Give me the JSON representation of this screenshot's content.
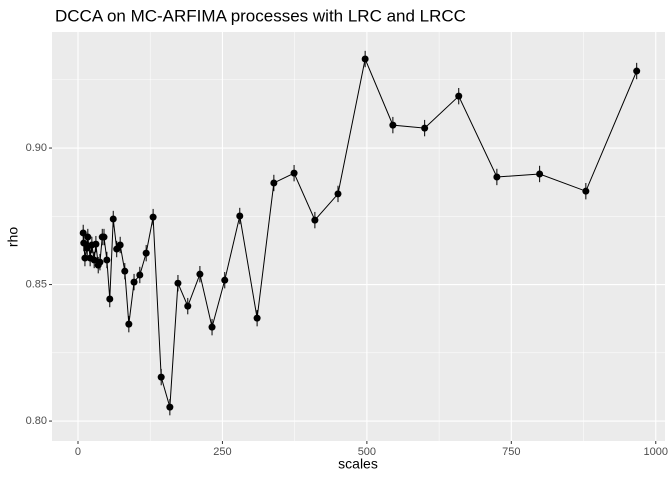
{
  "chart_data": {
    "type": "line",
    "title": "DCCA on MC-ARFIMA processes with LRC and LRCC",
    "x_label": "scales",
    "y_label": "rho",
    "x": [
      9,
      10,
      12,
      16,
      17,
      21,
      24,
      28,
      31,
      35,
      38,
      42,
      45,
      50,
      55,
      61,
      67,
      73,
      81,
      88,
      97,
      107,
      118,
      130,
      144,
      159,
      173,
      190,
      211,
      232,
      254,
      280,
      310,
      339,
      374,
      410,
      450,
      497,
      545,
      600,
      659,
      725,
      799,
      879,
      967
    ],
    "series": [
      {
        "name": "rho",
        "color": "#000000",
        "values": [
          0.8689,
          0.8652,
          0.8597,
          0.8634,
          0.8674,
          0.8597,
          0.8645,
          0.859,
          0.8648,
          0.8571,
          0.8582,
          0.8674,
          0.8674,
          0.859,
          0.8447,
          0.874,
          0.863,
          0.8645,
          0.8549,
          0.8355,
          0.8509,
          0.8535,
          0.8615,
          0.8747,
          0.8161,
          0.8051,
          0.8505,
          0.8421,
          0.8538,
          0.8344,
          0.8516,
          0.8751,
          0.8377,
          0.8872,
          0.8908,
          0.8736,
          0.8832,
          0.9326,
          0.9084,
          0.9073,
          0.919,
          0.8894,
          0.8905,
          0.8842,
          0.9282
        ],
        "errors": [
          0.003,
          0.003,
          0.003,
          0.003,
          0.003,
          0.003,
          0.003,
          0.003,
          0.003,
          0.003,
          0.003,
          0.003,
          0.003,
          0.003,
          0.003,
          0.003,
          0.003,
          0.003,
          0.003,
          0.003,
          0.003,
          0.003,
          0.003,
          0.003,
          0.003,
          0.003,
          0.003,
          0.003,
          0.003,
          0.003,
          0.003,
          0.003,
          0.003,
          0.003,
          0.003,
          0.003,
          0.003,
          0.003,
          0.003,
          0.003,
          0.003,
          0.003,
          0.003,
          0.003,
          0.003
        ]
      }
    ],
    "xlim": [
      -45,
      1016
    ],
    "xticks": [
      0,
      250,
      500,
      750,
      1000
    ],
    "ylim": [
      0.7927,
      0.9425
    ],
    "yticks": [
      {
        "value": 0.8,
        "label": "0.80"
      },
      {
        "value": 0.85,
        "label": "0.85"
      },
      {
        "value": 0.9,
        "label": "0.90"
      }
    ],
    "grid": true
  }
}
